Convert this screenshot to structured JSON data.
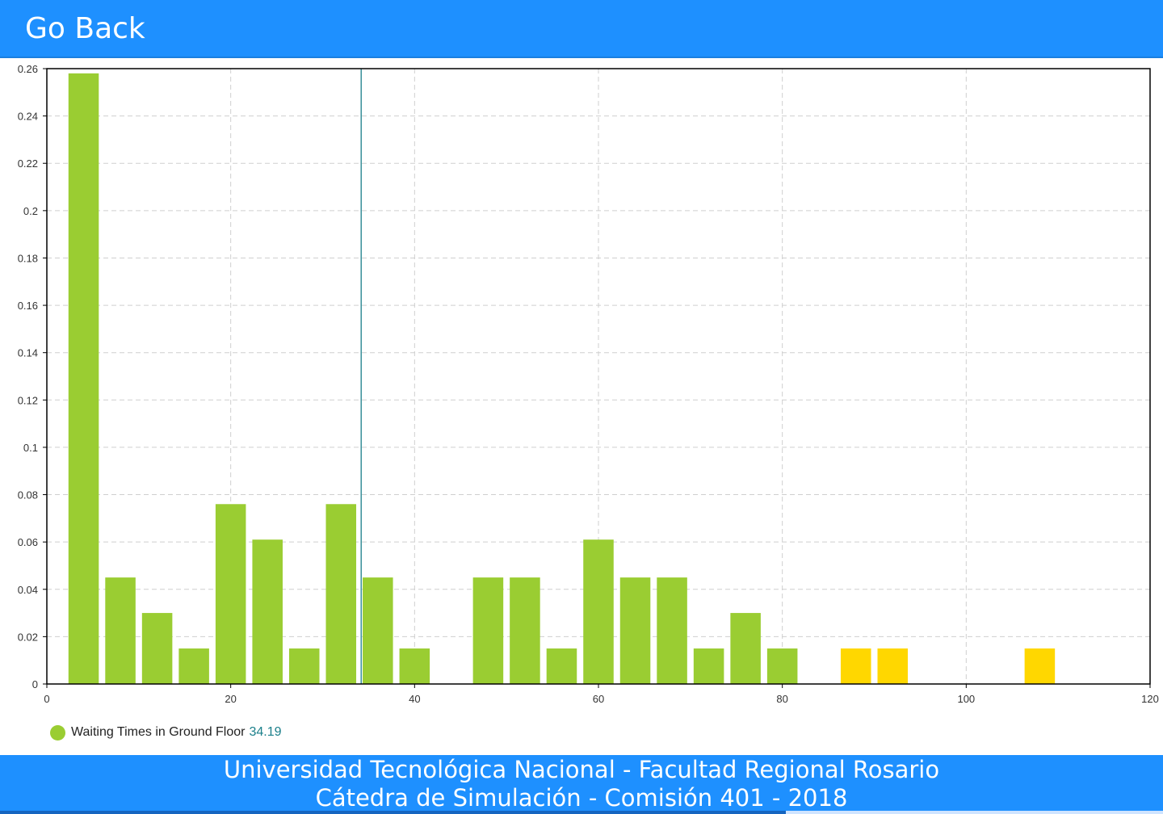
{
  "header": {
    "go_back_label": "Go Back"
  },
  "chart_data": {
    "type": "bar",
    "title": "",
    "xlabel": "",
    "ylabel": "",
    "xlim": [
      0,
      120
    ],
    "ylim": [
      0,
      0.26
    ],
    "x_ticks": [
      "0",
      "20",
      "40",
      "60",
      "80",
      "100",
      "120"
    ],
    "y_ticks": [
      "0",
      "0.02",
      "0.04",
      "0.06",
      "0.08",
      "0.1",
      "0.12",
      "0.14",
      "0.16",
      "0.18",
      "0.2",
      "0.22",
      "0.24",
      "0.26"
    ],
    "grid": true,
    "bin_width": 4,
    "colors": {
      "default": "#9acd32",
      "highlight": "#ffd700",
      "mean_line": "#1a7f8a"
    },
    "bars": [
      {
        "x": 4,
        "value": 0.258,
        "highlight": false
      },
      {
        "x": 8,
        "value": 0.045,
        "highlight": false
      },
      {
        "x": 12,
        "value": 0.03,
        "highlight": false
      },
      {
        "x": 16,
        "value": 0.015,
        "highlight": false
      },
      {
        "x": 20,
        "value": 0.076,
        "highlight": false
      },
      {
        "x": 24,
        "value": 0.061,
        "highlight": false
      },
      {
        "x": 28,
        "value": 0.015,
        "highlight": false
      },
      {
        "x": 32,
        "value": 0.076,
        "highlight": false
      },
      {
        "x": 36,
        "value": 0.045,
        "highlight": false
      },
      {
        "x": 40,
        "value": 0.015,
        "highlight": false
      },
      {
        "x": 48,
        "value": 0.045,
        "highlight": false
      },
      {
        "x": 52,
        "value": 0.045,
        "highlight": false
      },
      {
        "x": 56,
        "value": 0.015,
        "highlight": false
      },
      {
        "x": 60,
        "value": 0.061,
        "highlight": false
      },
      {
        "x": 64,
        "value": 0.045,
        "highlight": false
      },
      {
        "x": 68,
        "value": 0.045,
        "highlight": false
      },
      {
        "x": 72,
        "value": 0.015,
        "highlight": false
      },
      {
        "x": 76,
        "value": 0.03,
        "highlight": false
      },
      {
        "x": 80,
        "value": 0.015,
        "highlight": false
      },
      {
        "x": 88,
        "value": 0.015,
        "highlight": true
      },
      {
        "x": 92,
        "value": 0.015,
        "highlight": true
      },
      {
        "x": 108,
        "value": 0.015,
        "highlight": true
      }
    ],
    "mean_line_x": 34.19,
    "legend": {
      "position": "bottom-left",
      "label": "Waiting Times in Ground Floor",
      "value": "34.19"
    }
  },
  "footer": {
    "line1": "Universidad Tecnológica Nacional - Facultad Regional Rosario",
    "line2": "Cátedra de Simulación - Comisión 401 - 2018"
  }
}
